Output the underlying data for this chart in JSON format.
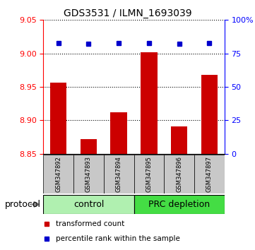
{
  "title": "GDS3531 / ILMN_1693039",
  "samples": [
    "GSM347892",
    "GSM347893",
    "GSM347894",
    "GSM347895",
    "GSM347896",
    "GSM347897"
  ],
  "bar_values": [
    8.956,
    8.872,
    8.912,
    9.002,
    8.891,
    8.968
  ],
  "percentile_values": [
    83,
    82,
    83,
    83,
    82,
    83
  ],
  "bar_color": "#cc0000",
  "dot_color": "#0000cc",
  "ylim_left": [
    8.85,
    9.05
  ],
  "ylim_right": [
    0,
    100
  ],
  "yticks_left": [
    8.85,
    8.9,
    8.95,
    9.0,
    9.05
  ],
  "yticks_right": [
    0,
    25,
    50,
    75,
    100
  ],
  "protocol_label": "protocol",
  "legend_bar_label": "transformed count",
  "legend_dot_label": "percentile rank within the sample",
  "bar_width": 0.55,
  "grid_color": "#000000",
  "xlabel_area_color": "#c8c8c8",
  "ctrl_color": "#b0f0b0",
  "prc_color": "#44dd44",
  "base_value": 8.85,
  "title_fontsize": 10,
  "tick_fontsize": 8,
  "sample_fontsize": 6,
  "group_fontsize": 9,
  "legend_fontsize": 7.5,
  "protocol_fontsize": 9
}
